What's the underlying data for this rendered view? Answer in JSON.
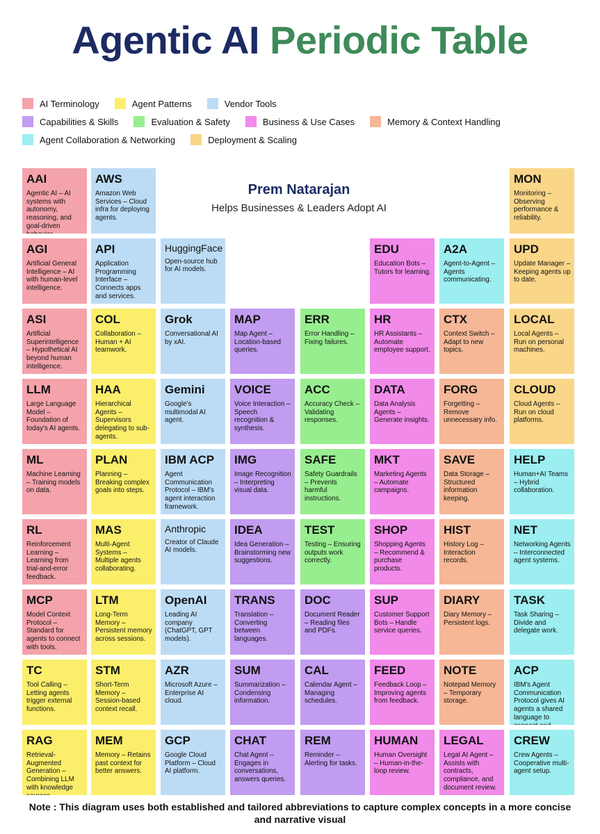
{
  "title": {
    "part1": "Agentic AI",
    "part2": "Periodic Table"
  },
  "author": {
    "name": "Prem Natarajan",
    "tagline": "Helps Businesses & Leaders Adopt AI"
  },
  "note": "Note : This diagram uses both established and tailored abbreviations to capture complex concepts in a more concise and narrative visual",
  "legend": [
    [
      {
        "label": "AI Terminology",
        "color": "#f4a3ab"
      },
      {
        "label": "Agent Patterns",
        "color": "#fbee6a"
      },
      {
        "label": "Vendor Tools",
        "color": "#bcdcf6"
      }
    ],
    [
      {
        "label": "Capabilities & Skills",
        "color": "#c19cf0"
      },
      {
        "label": "Evaluation & Safety",
        "color": "#97ee8f"
      },
      {
        "label": "Business & Use Cases",
        "color": "#f18ae9"
      },
      {
        "label": "Memory & Context Handling",
        "color": "#f5b796"
      }
    ],
    [
      {
        "label": "Agent Collaboration & Networking",
        "color": "#9ceef0"
      },
      {
        "label": "Deployment & Scaling",
        "color": "#f9d688"
      }
    ]
  ],
  "colors": {
    "term": "#f4a3ab",
    "pattern": "#fbee6a",
    "vendor": "#bcdcf6",
    "cap": "#c19cf0",
    "eval": "#97ee8f",
    "biz": "#f18ae9",
    "mem": "#f5b796",
    "collab": "#9ceef0",
    "deploy": "#f9d688"
  },
  "cells": [
    {
      "sym": "AAI",
      "desc": "Agentic AI – AI systems with autonomy, reasoning, and goal-driven behavior.",
      "cat": "term"
    },
    {
      "sym": "AGI",
      "desc": "Artificial General Intelligence – AI with human-level intelligence.",
      "cat": "term"
    },
    {
      "sym": "ASI",
      "desc": "Artificial Superintelligence – Hypothetical AI beyond human intelligence.",
      "cat": "term"
    },
    {
      "sym": "LLM",
      "desc": "Large Language Model – Foundation of today's AI agents.",
      "cat": "term"
    },
    {
      "sym": "ML",
      "desc": "Machine Learning – Training models on data.",
      "cat": "term"
    },
    {
      "sym": "RL",
      "desc": "Reinforcement Learning – Learning from trial-and-error feedback.",
      "cat": "term"
    },
    {
      "sym": "MCP",
      "desc": "Model Context Protocol – Standard for agents to connect with tools.",
      "cat": "term"
    },
    {
      "sym": "TC",
      "desc": "Tool Calling – Letting agents trigger external functions.",
      "cat": "pattern"
    },
    {
      "sym": "RAG",
      "desc": "Retrieval-Augmented Generation – Combining LLM with knowledge sources.",
      "cat": "pattern"
    },
    {
      "sym": "AWS",
      "desc": "Amazon Web Services – Cloud infra for deploying agents.",
      "cat": "vendor"
    },
    {
      "sym": "API",
      "desc": "Application Programming Interface – Connects apps and services.",
      "cat": "vendor"
    },
    {
      "sym": "COL",
      "desc": "Collaboration – Human + AI teamwork.",
      "cat": "pattern"
    },
    {
      "sym": "HAA",
      "desc": "Hierarchical Agents – Supervisors delegating to sub-agents.",
      "cat": "pattern"
    },
    {
      "sym": "PLAN",
      "desc": "Planning – Breaking complex goals into steps.",
      "cat": "pattern"
    },
    {
      "sym": "MAS",
      "desc": "Multi-Agent Systems – Multiple agents collaborating.",
      "cat": "pattern"
    },
    {
      "sym": "LTM",
      "desc": "Long-Term Memory – Persistent memory across sessions.",
      "cat": "pattern"
    },
    {
      "sym": "STM",
      "desc": "Short-Term Memory – Session-based context recall.",
      "cat": "pattern"
    },
    {
      "sym": "MEM",
      "desc": "Memory – Retains past context for better answers.",
      "cat": "pattern"
    },
    {
      "sym": "HuggingFace",
      "desc": "Open-source hub for AI models.",
      "cat": "vendor"
    },
    {
      "sym": "Grok",
      "desc": "Conversational AI by xAI.",
      "cat": "vendor"
    },
    {
      "sym": "Gemini",
      "desc": "Google's multimodal AI agent.",
      "cat": "vendor"
    },
    {
      "sym": "IBM ACP",
      "desc": "Agent Communication Protocol – IBM's agent interaction framework.",
      "cat": "vendor"
    },
    {
      "sym": "Anthropic",
      "desc": "Creator of Claude AI models.",
      "cat": "vendor"
    },
    {
      "sym": "OpenAI",
      "desc": "Leading AI company (ChatGPT, GPT models).",
      "cat": "vendor"
    },
    {
      "sym": "AZR",
      "desc": "Microsoft Azure – Enterprise AI cloud.",
      "cat": "vendor"
    },
    {
      "sym": "GCP",
      "desc": "Google Cloud Platform – Cloud AI platform.",
      "cat": "vendor"
    },
    {
      "sym": "MAP",
      "desc": "Map Agent – Location-based queries.",
      "cat": "cap"
    },
    {
      "sym": "VOICE",
      "desc": "Voice Interaction – Speech recognition & synthesis.",
      "cat": "cap"
    },
    {
      "sym": "IMG",
      "desc": "Image Recognition – Interpreting visual data.",
      "cat": "cap"
    },
    {
      "sym": "IDEA",
      "desc": "Idea Generation – Brainstorming new suggestions.",
      "cat": "cap"
    },
    {
      "sym": "TRANS",
      "desc": "Translation – Converting between languages.",
      "cat": "cap"
    },
    {
      "sym": "SUM",
      "desc": "Summarization – Condensing information.",
      "cat": "cap"
    },
    {
      "sym": "CHAT",
      "desc": "Chat Agent – Engages in conversations, answers queries.",
      "cat": "cap"
    },
    {
      "sym": "ERR",
      "desc": "Error Handling – Fixing failures.",
      "cat": "eval"
    },
    {
      "sym": "ACC",
      "desc": "Accuracy Check – Validating responses.",
      "cat": "eval"
    },
    {
      "sym": "SAFE",
      "desc": "Safety Guardrails – Prevents harmful instructions.",
      "cat": "eval"
    },
    {
      "sym": "TEST",
      "desc": "Testing – Ensuring outputs work correctly.",
      "cat": "eval"
    },
    {
      "sym": "DOC",
      "desc": "Document Reader – Reading files and PDFs.",
      "cat": "cap"
    },
    {
      "sym": "CAL",
      "desc": "Calendar Agent – Managing schedules.",
      "cat": "cap"
    },
    {
      "sym": "REM",
      "desc": "Reminder – Alerting for tasks.",
      "cat": "cap"
    },
    {
      "sym": "EDU",
      "desc": "Education Bots – Tutors for learning.",
      "cat": "biz"
    },
    {
      "sym": "HR",
      "desc": "HR Assistants – Automate employee support.",
      "cat": "biz"
    },
    {
      "sym": "DATA",
      "desc": "Data Analysis Agents – Generate insights.",
      "cat": "biz"
    },
    {
      "sym": "MKT",
      "desc": "Marketing Agents – Automate campaigns.",
      "cat": "biz"
    },
    {
      "sym": "SHOP",
      "desc": "Shopping Agents – Recommend & purchase products.",
      "cat": "biz"
    },
    {
      "sym": "SUP",
      "desc": "Customer Support Bots – Handle service queries.",
      "cat": "biz"
    },
    {
      "sym": "FEED",
      "desc": "Feedback Loop – Improving agents from feedback.",
      "cat": "biz"
    },
    {
      "sym": "HUMAN",
      "desc": "Human Oversight – Human-in-the-loop review.",
      "cat": "biz"
    },
    {
      "sym": "A2A",
      "desc": "Agent-to-Agent – Agents communicating.",
      "cat": "collab"
    },
    {
      "sym": "CTX",
      "desc": "Context Switch – Adapt to new topics.",
      "cat": "mem"
    },
    {
      "sym": "FORG",
      "desc": "Forgetting – Remove unnecessary info.",
      "cat": "mem"
    },
    {
      "sym": "SAVE",
      "desc": "Data Storage – Structured information keeping.",
      "cat": "mem"
    },
    {
      "sym": "HIST",
      "desc": "History Log – Interaction records.",
      "cat": "mem"
    },
    {
      "sym": "DIARY",
      "desc": "Diary Memory – Persistent logs.",
      "cat": "mem"
    },
    {
      "sym": "NOTE",
      "desc": "Notepad Memory – Temporary storage.",
      "cat": "mem"
    },
    {
      "sym": "LEGAL",
      "desc": "Legal AI Agent – Assists with contracts, compliance, and document review.",
      "cat": "biz"
    },
    {
      "sym": "MON",
      "desc": "Monitoring – Observing performance & reliability.",
      "cat": "deploy"
    },
    {
      "sym": "UPD",
      "desc": "Update Manager – Keeping agents up to date.",
      "cat": "deploy"
    },
    {
      "sym": "LOCAL",
      "desc": "Local Agents – Run on personal machines.",
      "cat": "deploy"
    },
    {
      "sym": "CLOUD",
      "desc": "Cloud Agents – Run on cloud platforms.",
      "cat": "deploy"
    },
    {
      "sym": "HELP",
      "desc": "Human+AI Teams – Hybrid collaboration.",
      "cat": "collab"
    },
    {
      "sym": "NET",
      "desc": "Networking Agents – Interconnected agent systems.",
      "cat": "collab"
    },
    {
      "sym": "TASK",
      "desc": "Task Sharing – Divide and delegate work.",
      "cat": "collab"
    },
    {
      "sym": "ACP",
      "desc": "IBM's Agent Communication Protocol gives AI agents a shared language to connect and collaborate",
      "cat": "collab"
    },
    {
      "sym": "CREW",
      "desc": "Crew Agents – Cooperative multi-agent setup.",
      "cat": "collab"
    }
  ]
}
